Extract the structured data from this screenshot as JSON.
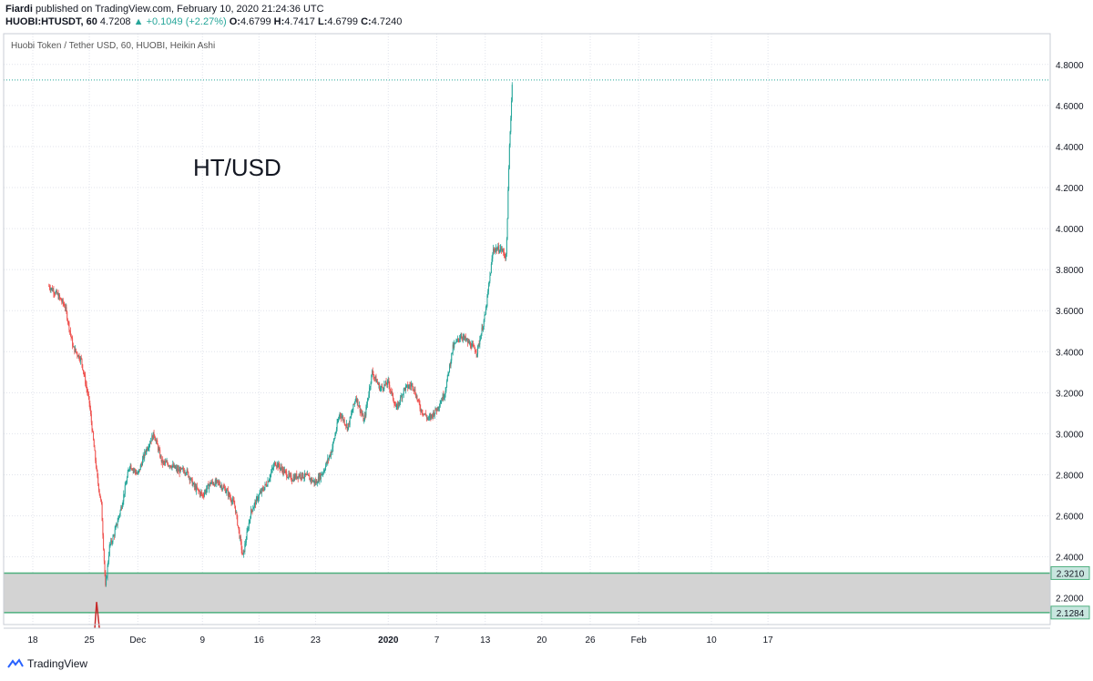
{
  "publish": {
    "author": "Fiardi",
    "text": "published on TradingView.com, February 10, 2020 21:24:36 UTC"
  },
  "symbol_bar": {
    "symbol": "HUOBI:HTUSDT, 60",
    "last": "4.7208",
    "change": "▲ +0.1049 (+2.27%)",
    "o_label": "O:",
    "o": "4.6799",
    "h_label": "H:",
    "h": "4.7417",
    "l_label": "L:",
    "l": "4.6799",
    "c_label": "C:",
    "c": "4.7240"
  },
  "chart_header": "Huobi Token / Tether USD, 60, HUOBI, Heikin Ashi",
  "annotation": "HT/USD",
  "footer": {
    "brand": "TradingView"
  },
  "colors": {
    "up": "#26a69a",
    "down": "#ef5350",
    "grid": "#e0e3eb",
    "zone_fill": "#d3d3d3",
    "zone_line": "#4caf7d",
    "price_line": "#26a69a",
    "badge": "#c8e6df"
  },
  "chart_data": {
    "type": "candlestick",
    "title": "Huobi Token / Tether USD, 60, HUOBI, Heikin Ashi",
    "y_axis": {
      "ticks": [
        "4.8000",
        "4.6000",
        "4.4000",
        "4.2000",
        "4.0000",
        "3.8000",
        "3.6000",
        "3.4000",
        "3.2000",
        "3.0000",
        "2.8000",
        "2.6000",
        "2.4000",
        "2.2000"
      ],
      "ylim": [
        2.07,
        4.95
      ]
    },
    "x_axis": {
      "ticks": [
        "18",
        "25",
        "Dec",
        "9",
        "16",
        "23",
        "2020",
        "7",
        "13",
        "20",
        "26",
        "Feb",
        "10",
        "17"
      ],
      "tick_days": [
        0,
        7,
        13,
        21,
        28,
        35,
        44,
        50,
        56,
        63,
        69,
        75,
        84,
        91
      ]
    },
    "series": [
      {
        "values": [
          [
            0,
            3.72
          ],
          [
            1,
            3.68
          ],
          [
            2,
            3.62
          ],
          [
            3,
            3.42
          ],
          [
            4,
            3.36
          ],
          [
            5,
            3.15
          ],
          [
            6,
            2.78
          ],
          [
            6.5,
            2.65
          ],
          [
            7,
            2.25
          ],
          [
            7.5,
            2.45
          ],
          [
            8,
            2.5
          ],
          [
            9,
            2.65
          ],
          [
            10,
            2.85
          ],
          [
            11,
            2.8
          ],
          [
            12,
            2.92
          ],
          [
            13,
            3.0
          ],
          [
            14,
            2.86
          ],
          [
            15,
            2.85
          ],
          [
            16,
            2.82
          ],
          [
            17,
            2.82
          ],
          [
            18,
            2.74
          ],
          [
            19,
            2.7
          ],
          [
            20,
            2.76
          ],
          [
            21,
            2.76
          ],
          [
            22,
            2.72
          ],
          [
            23,
            2.65
          ],
          [
            24,
            2.4
          ],
          [
            25,
            2.62
          ],
          [
            26,
            2.7
          ],
          [
            27,
            2.76
          ],
          [
            28,
            2.86
          ],
          [
            29,
            2.82
          ],
          [
            30,
            2.78
          ],
          [
            31,
            2.8
          ],
          [
            32,
            2.79
          ],
          [
            33,
            2.76
          ],
          [
            34,
            2.82
          ],
          [
            35,
            2.92
          ],
          [
            36,
            3.1
          ],
          [
            37,
            3.03
          ],
          [
            38,
            3.18
          ],
          [
            39,
            3.06
          ],
          [
            40,
            3.3
          ],
          [
            41,
            3.22
          ],
          [
            42,
            3.25
          ],
          [
            43,
            3.12
          ],
          [
            44,
            3.22
          ],
          [
            45,
            3.24
          ],
          [
            46,
            3.12
          ],
          [
            47,
            3.07
          ],
          [
            48,
            3.12
          ],
          [
            49,
            3.2
          ],
          [
            50,
            3.42
          ],
          [
            51,
            3.48
          ],
          [
            52,
            3.44
          ],
          [
            53,
            3.4
          ],
          [
            54,
            3.58
          ],
          [
            55,
            3.9
          ],
          [
            56,
            3.9
          ],
          [
            56.6,
            3.86
          ],
          [
            57,
            4.4
          ],
          [
            57.4,
            4.76
          ]
        ]
      }
    ],
    "zones": [
      {
        "top": 2.321,
        "bottom": 2.1284
      }
    ],
    "price_labels": [
      "2.3210",
      "2.1284"
    ],
    "last_price": 4.724
  }
}
